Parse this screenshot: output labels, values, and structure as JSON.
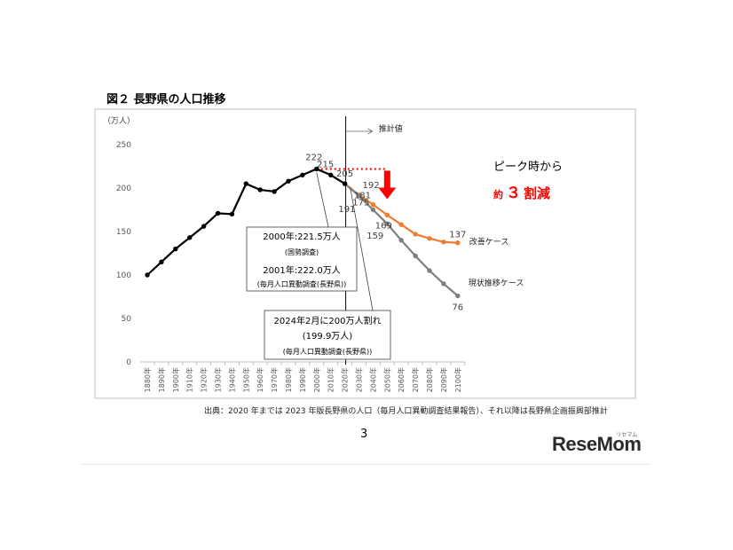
{
  "figure_title": "図２ 長野県の人口推移",
  "source_note": "出典：2020 年までは 2023 年版長野県の人口（毎月人口異動調査結果報告）、それ以降は長野県企画振興部推計",
  "page_number": "3",
  "logo": {
    "text": "ReseMom",
    "sub": "リセマム"
  },
  "colors": {
    "actual": "#000000",
    "improved": "#ED7D31",
    "current": "#7F7F7F",
    "emphasis": "#FF0000"
  },
  "chart_data": {
    "type": "line",
    "y_unit_label": "（万人）",
    "ylim": [
      0,
      250
    ],
    "yticks": [
      0,
      50,
      100,
      150,
      200,
      250
    ],
    "categories": [
      "1880年",
      "1890年",
      "1900年",
      "1910年",
      "1920年",
      "1930年",
      "1940年",
      "1950年",
      "1960年",
      "1970年",
      "1980年",
      "1990年",
      "2000年",
      "2010年",
      "2020年",
      "2030年",
      "2040年",
      "2050年",
      "2060年",
      "2070年",
      "2080年",
      "2090年",
      "2100年"
    ],
    "grid": false,
    "series": [
      {
        "name": "",
        "role": "actual",
        "values": [
          100,
          115,
          130,
          143,
          156,
          171,
          170,
          205,
          198,
          196,
          208,
          215,
          222,
          215,
          205,
          null,
          null,
          null,
          null,
          null,
          null,
          null,
          null
        ]
      },
      {
        "name": "改善ケース",
        "role": "improved",
        "values": [
          null,
          null,
          null,
          null,
          null,
          null,
          null,
          null,
          null,
          null,
          null,
          null,
          null,
          null,
          205,
          192,
          181,
          169,
          158,
          147,
          142,
          138,
          137
        ]
      },
      {
        "name": "現状推移ケース",
        "role": "current",
        "values": [
          null,
          null,
          null,
          null,
          null,
          null,
          null,
          null,
          null,
          null,
          null,
          null,
          null,
          null,
          205,
          191,
          175,
          159,
          140,
          122,
          105,
          90,
          76
        ]
      }
    ],
    "data_labels": [
      {
        "text": "222",
        "x": "2000年",
        "y": 222,
        "color": "#404040"
      },
      {
        "text": "215",
        "x": "2010年",
        "y": 215,
        "color": "#404040"
      },
      {
        "text": "205",
        "x": "2020年",
        "y": 205,
        "color": "#404040"
      },
      {
        "text": "192",
        "x": "2030年",
        "y": 192,
        "color": "#404040"
      },
      {
        "text": "181",
        "x": "2040年",
        "y": 181,
        "color": "#404040"
      },
      {
        "text": "169",
        "x": "2050年",
        "y": 169,
        "color": "#404040"
      },
      {
        "text": "191",
        "x": "2030年",
        "y": 191,
        "color": "#404040"
      },
      {
        "text": "175",
        "x": "2040年",
        "y": 175,
        "color": "#404040"
      },
      {
        "text": "159",
        "x": "2050年",
        "y": 159,
        "color": "#404040"
      },
      {
        "text": "137",
        "x": "2100年",
        "y": 137,
        "color": "#404040"
      },
      {
        "text": "76",
        "x": "2100年",
        "y": 76,
        "color": "#404040"
      }
    ],
    "series_end_labels": {
      "improved": "改善ケース",
      "current": "現状推移ケース"
    },
    "estimate_label": "推計値",
    "peak_line": {
      "from": "2000年",
      "to": "2050年",
      "y": 222
    },
    "peak_callout": {
      "line1": "ピーク時から",
      "prefix": "約",
      "number": "３",
      "suffix": "割減"
    },
    "annotations": [
      {
        "lines": [
          "2000年:221.5万人",
          "(国勢調査)",
          "2001年:222.0万人",
          "(毎月人口異動調査(長野県))"
        ]
      },
      {
        "lines": [
          "2024年2月に200万人割れ",
          "(199.9万人)",
          "(毎月人口異動調査(長野県))"
        ]
      }
    ]
  }
}
